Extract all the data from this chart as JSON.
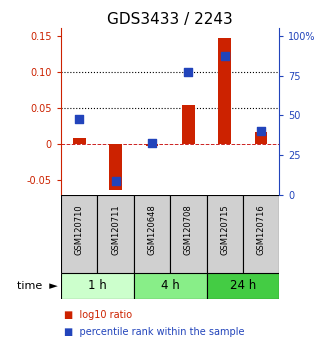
{
  "title": "GDS3433 / 2243",
  "samples": [
    "GSM120710",
    "GSM120711",
    "GSM120648",
    "GSM120708",
    "GSM120715",
    "GSM120716"
  ],
  "log10_ratio": [
    0.008,
    -0.063,
    -0.003,
    0.054,
    0.146,
    0.016
  ],
  "percentile_rank_pct": [
    47.5,
    8.5,
    32.5,
    77.5,
    87.5,
    40.0
  ],
  "groups": [
    {
      "label": "1 h",
      "samples": [
        0,
        1
      ],
      "color": "#ccffcc"
    },
    {
      "label": "4 h",
      "samples": [
        2,
        3
      ],
      "color": "#88ee88"
    },
    {
      "label": "24 h",
      "samples": [
        4,
        5
      ],
      "color": "#44cc44"
    }
  ],
  "ylim_left": [
    -0.07,
    0.16
  ],
  "ylim_right": [
    0,
    105
  ],
  "yticks_left": [
    -0.05,
    0.0,
    0.05,
    0.1,
    0.15
  ],
  "ytick_labels_left": [
    "-0.05",
    "0",
    "0.05",
    "0.10",
    "0.15"
  ],
  "yticks_right": [
    0,
    25,
    50,
    75,
    100
  ],
  "ytick_labels_right": [
    "0",
    "25",
    "50",
    "75",
    "100%"
  ],
  "hlines": [
    0.05,
    0.1
  ],
  "bar_color": "#cc2200",
  "dot_color": "#2244bb",
  "zero_line_color": "#cc2222",
  "hline_color": "#000000",
  "title_fontsize": 11,
  "tick_fontsize": 7,
  "sample_label_fontsize": 6,
  "group_label_fontsize": 8.5,
  "time_label_fontsize": 8,
  "legend_fontsize": 7,
  "sample_cell_color": "#d0d0d0"
}
